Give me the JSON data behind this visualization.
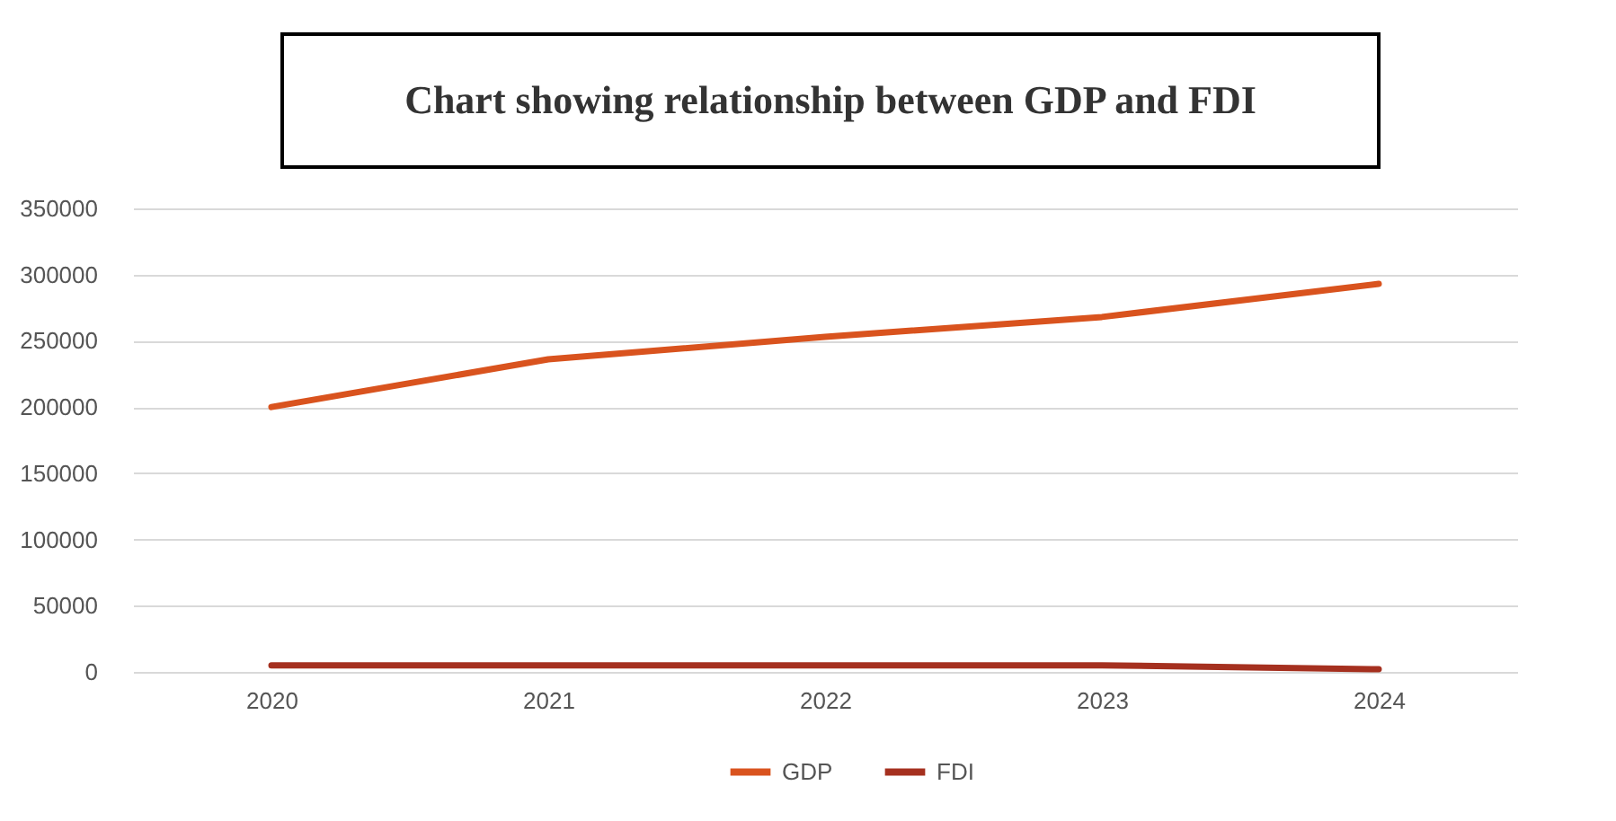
{
  "chart_data": {
    "type": "line",
    "title": "Chart showing relationship between GDP and FDI",
    "categories": [
      "2020",
      "2021",
      "2022",
      "2023",
      "2024"
    ],
    "series": [
      {
        "name": "GDP",
        "color": "#d9531e",
        "values": [
          200000,
          236000,
          253000,
          268000,
          293000
        ]
      },
      {
        "name": "FDI",
        "color": "#a5301f",
        "values": [
          5000,
          5000,
          5000,
          5000,
          2000
        ]
      }
    ],
    "ylim": [
      0,
      350000
    ],
    "yticks": [
      0,
      50000,
      100000,
      150000,
      200000,
      250000,
      300000,
      350000
    ],
    "grid": "y",
    "legend": "bottom",
    "marker": "none",
    "line_style": "solid"
  }
}
